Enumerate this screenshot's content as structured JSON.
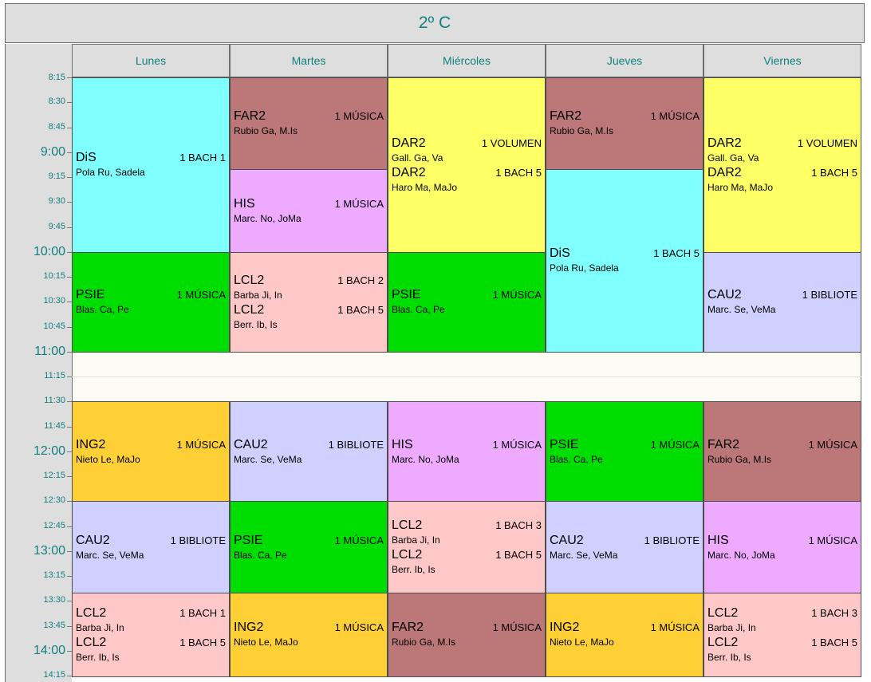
{
  "title": "2º C",
  "days": [
    "Lunes",
    "Martes",
    "Miércoles",
    "Jueves",
    "Viernes"
  ],
  "times": [
    {
      "label": "8:15",
      "major": false
    },
    {
      "label": "8:30",
      "major": false
    },
    {
      "label": "8:45",
      "major": false
    },
    {
      "label": "9:00",
      "major": true
    },
    {
      "label": "9:15",
      "major": false
    },
    {
      "label": "9:30",
      "major": false
    },
    {
      "label": "9:45",
      "major": false
    },
    {
      "label": "10:00",
      "major": true
    },
    {
      "label": "10:15",
      "major": false
    },
    {
      "label": "10:30",
      "major": false
    },
    {
      "label": "10:45",
      "major": false
    },
    {
      "label": "11:00",
      "major": true
    },
    {
      "label": "11:15",
      "major": false
    },
    {
      "label": "11:30",
      "major": false
    },
    {
      "label": "11:45",
      "major": false
    },
    {
      "label": "12:00",
      "major": true
    },
    {
      "label": "12:15",
      "major": false
    },
    {
      "label": "12:30",
      "major": false
    },
    {
      "label": "12:45",
      "major": false
    },
    {
      "label": "13:00",
      "major": true
    },
    {
      "label": "13:15",
      "major": false
    },
    {
      "label": "13:30",
      "major": false
    },
    {
      "label": "13:45",
      "major": false
    },
    {
      "label": "14:00",
      "major": true
    },
    {
      "label": "14:15",
      "major": false
    }
  ],
  "colors": {
    "DiS": "#80ffff",
    "FAR2": "#bc7878",
    "HIS": "#eeaaff",
    "DAR2": "#ffff66",
    "PSIE": "#00dd00",
    "LCL2": "#ffc8c8",
    "CAU2": "#d0d0ff",
    "ING2": "#ffd036"
  },
  "sessions": [
    {
      "day": 0,
      "start": "8:15",
      "end": "10:00",
      "color": "DiS",
      "entries": [
        {
          "subject": "DiS",
          "room": "1 BACH 1",
          "teacher": "Pola Ru, Sadela"
        }
      ]
    },
    {
      "day": 0,
      "start": "10:00",
      "end": "11:00",
      "color": "PSIE",
      "entries": [
        {
          "subject": "PSIE",
          "room": "1 MÚSICA",
          "teacher": "Blas. Ca, Pe"
        }
      ]
    },
    {
      "day": 0,
      "start": "11:30",
      "end": "12:30",
      "color": "ING2",
      "entries": [
        {
          "subject": "ING2",
          "room": "1 MÚSICA",
          "teacher": "Nieto Le, MaJo"
        }
      ]
    },
    {
      "day": 0,
      "start": "12:30",
      "end": "13:25",
      "color": "CAU2",
      "entries": [
        {
          "subject": "CAU2",
          "room": "1 BIBLIOTE",
          "teacher": "Marc. Se, VeMa"
        }
      ]
    },
    {
      "day": 0,
      "start": "13:25",
      "end": "14:20",
      "color": "LCL2",
      "entries": [
        {
          "subject": "LCL2",
          "room": "1 BACH 1",
          "teacher": "Barba Ji, In"
        },
        {
          "subject": "LCL2",
          "room": "1 BACH 5",
          "teacher": "Berr. Ib, Is"
        }
      ]
    },
    {
      "day": 1,
      "start": "8:15",
      "end": "9:10",
      "color": "FAR2",
      "entries": [
        {
          "subject": "FAR2",
          "room": "1 MÚSICA",
          "teacher": "Rubio Ga, M.Is"
        }
      ]
    },
    {
      "day": 1,
      "start": "9:10",
      "end": "10:00",
      "color": "HIS",
      "entries": [
        {
          "subject": "HIS",
          "room": "1 MÚSICA",
          "teacher": "Marc. No, JoMa"
        }
      ]
    },
    {
      "day": 1,
      "start": "10:00",
      "end": "11:00",
      "color": "LCL2",
      "entries": [
        {
          "subject": "LCL2",
          "room": "1 BACH 2",
          "teacher": "Barba Ji, In"
        },
        {
          "subject": "LCL2",
          "room": "1 BACH 5",
          "teacher": "Berr. Ib, Is"
        }
      ]
    },
    {
      "day": 1,
      "start": "11:30",
      "end": "12:30",
      "color": "CAU2",
      "entries": [
        {
          "subject": "CAU2",
          "room": "1 BIBLIOTE",
          "teacher": "Marc. Se, VeMa"
        }
      ]
    },
    {
      "day": 1,
      "start": "12:30",
      "end": "13:25",
      "color": "PSIE",
      "entries": [
        {
          "subject": "PSIE",
          "room": "1 MÚSICA",
          "teacher": "Blas. Ca, Pe"
        }
      ]
    },
    {
      "day": 1,
      "start": "13:25",
      "end": "14:20",
      "color": "ING2",
      "entries": [
        {
          "subject": "ING2",
          "room": "1 MÚSICA",
          "teacher": "Nieto Le, MaJo"
        }
      ]
    },
    {
      "day": 2,
      "start": "8:15",
      "end": "10:00",
      "color": "DAR2",
      "entries": [
        {
          "subject": "DAR2",
          "room": "1 VOLUMEN",
          "teacher": "Gall. Ga, Va"
        },
        {
          "subject": "DAR2",
          "room": "1 BACH 5",
          "teacher": "Haro Ma, MaJo"
        }
      ]
    },
    {
      "day": 2,
      "start": "10:00",
      "end": "11:00",
      "color": "PSIE",
      "entries": [
        {
          "subject": "PSIE",
          "room": "1 MÚSICA",
          "teacher": "Blas. Ca, Pe"
        }
      ]
    },
    {
      "day": 2,
      "start": "11:30",
      "end": "12:30",
      "color": "HIS",
      "entries": [
        {
          "subject": "HIS",
          "room": "1 MÚSICA",
          "teacher": "Marc. No, JoMa"
        }
      ]
    },
    {
      "day": 2,
      "start": "12:30",
      "end": "13:25",
      "color": "LCL2",
      "entries": [
        {
          "subject": "LCL2",
          "room": "1 BACH 3",
          "teacher": "Barba Ji, In"
        },
        {
          "subject": "LCL2",
          "room": "1 BACH 5",
          "teacher": "Berr. Ib, Is"
        }
      ]
    },
    {
      "day": 2,
      "start": "13:25",
      "end": "14:20",
      "color": "FAR2",
      "entries": [
        {
          "subject": "FAR2",
          "room": "1 MÚSICA",
          "teacher": "Rubio Ga, M.Is"
        }
      ]
    },
    {
      "day": 3,
      "start": "8:15",
      "end": "9:10",
      "color": "FAR2",
      "entries": [
        {
          "subject": "FAR2",
          "room": "1 MÚSICA",
          "teacher": "Rubio Ga, M.Is"
        }
      ]
    },
    {
      "day": 3,
      "start": "9:10",
      "end": "11:00",
      "color": "DiS",
      "entries": [
        {
          "subject": "DiS",
          "room": "1 BACH 5",
          "teacher": "Pola Ru, Sadela"
        }
      ]
    },
    {
      "day": 3,
      "start": "11:30",
      "end": "12:30",
      "color": "PSIE",
      "entries": [
        {
          "subject": "PSIE",
          "room": "1 MÚSICA",
          "teacher": "Blas. Ca, Pe"
        }
      ]
    },
    {
      "day": 3,
      "start": "12:30",
      "end": "13:25",
      "color": "CAU2",
      "entries": [
        {
          "subject": "CAU2",
          "room": "1 BIBLIOTE",
          "teacher": "Marc. Se, VeMa"
        }
      ]
    },
    {
      "day": 3,
      "start": "13:25",
      "end": "14:20",
      "color": "ING2",
      "entries": [
        {
          "subject": "ING2",
          "room": "1 MÚSICA",
          "teacher": "Nieto Le, MaJo"
        }
      ]
    },
    {
      "day": 4,
      "start": "8:15",
      "end": "10:00",
      "color": "DAR2",
      "entries": [
        {
          "subject": "DAR2",
          "room": "1 VOLUMEN",
          "teacher": "Gall. Ga, Va"
        },
        {
          "subject": "DAR2",
          "room": "1 BACH 5",
          "teacher": "Haro Ma, MaJo"
        }
      ]
    },
    {
      "day": 4,
      "start": "10:00",
      "end": "11:00",
      "color": "CAU2",
      "entries": [
        {
          "subject": "CAU2",
          "room": "1 BIBLIOTE",
          "teacher": "Marc. Se, VeMa"
        }
      ]
    },
    {
      "day": 4,
      "start": "11:30",
      "end": "12:30",
      "color": "FAR2",
      "entries": [
        {
          "subject": "FAR2",
          "room": "1 MÚSICA",
          "teacher": "Rubio Ga, M.Is"
        }
      ]
    },
    {
      "day": 4,
      "start": "12:30",
      "end": "13:25",
      "color": "HIS",
      "entries": [
        {
          "subject": "HIS",
          "room": "1 MÚSICA",
          "teacher": "Marc. No, JoMa"
        }
      ]
    },
    {
      "day": 4,
      "start": "13:25",
      "end": "14:20",
      "color": "LCL2",
      "entries": [
        {
          "subject": "LCL2",
          "room": "1 BACH 3",
          "teacher": "Barba Ji, In"
        },
        {
          "subject": "LCL2",
          "room": "1 BACH 5",
          "teacher": "Berr. Ib, Is"
        }
      ]
    }
  ]
}
